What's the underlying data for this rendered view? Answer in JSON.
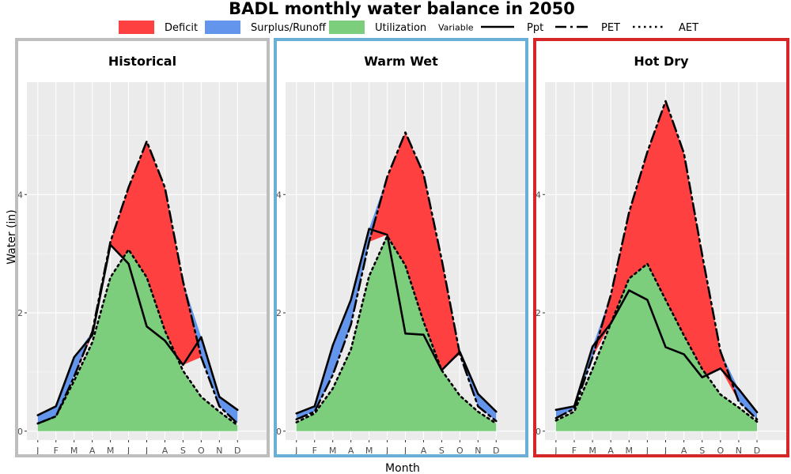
{
  "chart_data": {
    "type": "area",
    "title": "BADL monthly water balance in 2050",
    "xlabel": "Month",
    "ylabel": "Water (in)",
    "ylim": [
      -0.15,
      5.9
    ],
    "yticks": [
      0,
      2,
      4
    ],
    "grid": true,
    "legend_placement": "top",
    "months": [
      "J",
      "F",
      "M",
      "A",
      "M",
      "J",
      "J",
      "A",
      "S",
      "O",
      "N",
      "D"
    ],
    "legend": {
      "fills": [
        {
          "key": "deficit",
          "label": "Deficit",
          "color": "#ff4040"
        },
        {
          "key": "surplus",
          "label": "Surplus/Runoff",
          "color": "#6495ed"
        },
        {
          "key": "utilization",
          "label": "Utilization",
          "color": "#7ccd7c"
        }
      ],
      "variable_title": "Variable",
      "lines": [
        {
          "key": "ppt",
          "label": "Ppt",
          "dash": "solid"
        },
        {
          "key": "pet",
          "label": "PET",
          "dash": "longdash"
        },
        {
          "key": "aet",
          "label": "AET",
          "dash": "dotted"
        }
      ]
    },
    "panels": [
      {
        "name": "Historical",
        "border_color": "#bebebe",
        "ppt": [
          0.27,
          0.42,
          1.25,
          1.62,
          3.15,
          2.83,
          1.77,
          1.53,
          1.12,
          1.59,
          0.58,
          0.36
        ],
        "pet": [
          0.13,
          0.25,
          0.92,
          1.68,
          3.2,
          4.12,
          4.9,
          4.12,
          2.53,
          1.25,
          0.42,
          0.13
        ],
        "aet": [
          0.13,
          0.25,
          0.85,
          1.5,
          2.6,
          3.07,
          2.6,
          1.7,
          1.02,
          0.58,
          0.33,
          0.1
        ]
      },
      {
        "name": "Warm Wet",
        "border_color": "#6baed6",
        "ppt": [
          0.3,
          0.42,
          1.45,
          2.22,
          3.42,
          3.32,
          1.65,
          1.63,
          1.03,
          1.34,
          0.63,
          0.33
        ],
        "pet": [
          0.2,
          0.33,
          0.95,
          1.8,
          3.2,
          4.3,
          5.05,
          4.35,
          2.9,
          1.3,
          0.42,
          0.17
        ],
        "aet": [
          0.15,
          0.3,
          0.72,
          1.38,
          2.62,
          3.3,
          2.8,
          1.85,
          1.03,
          0.6,
          0.33,
          0.13
        ]
      },
      {
        "name": "Hot Dry",
        "border_color": "#d62728",
        "ppt": [
          0.36,
          0.42,
          1.43,
          1.82,
          2.38,
          2.22,
          1.42,
          1.3,
          0.91,
          1.06,
          0.71,
          0.32
        ],
        "pet": [
          0.22,
          0.38,
          1.25,
          2.3,
          3.7,
          4.72,
          5.58,
          4.7,
          2.98,
          1.35,
          0.5,
          0.2
        ],
        "aet": [
          0.18,
          0.33,
          1.05,
          1.82,
          2.58,
          2.83,
          2.22,
          1.62,
          1.05,
          0.62,
          0.4,
          0.16
        ]
      }
    ]
  }
}
